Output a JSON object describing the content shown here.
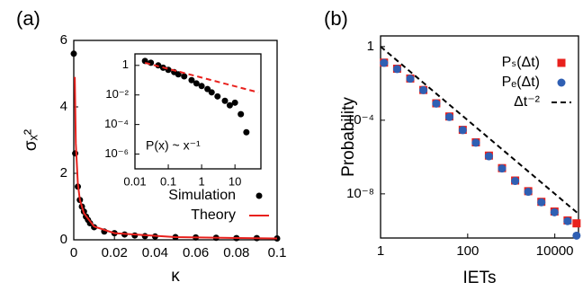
{
  "chart_data": [
    {
      "type": "scatter",
      "panel_label": "(a)",
      "xlabel": "κ",
      "ylabel": "σₓ²",
      "xlim": [
        0,
        0.1
      ],
      "xticks": [
        0,
        0.02,
        0.04,
        0.06,
        0.08,
        0.1
      ],
      "ylim": [
        0,
        6
      ],
      "yticks": [
        0,
        2,
        4,
        6
      ],
      "legend": "lower right",
      "series": [
        {
          "name": "Simulation",
          "color": "#000000",
          "marker": "circle",
          "x": [
            0,
            0.0007,
            0.002,
            0.003,
            0.004,
            0.005,
            0.006,
            0.007,
            0.008,
            0.01,
            0.015,
            0.02,
            0.025,
            0.03,
            0.035,
            0.04,
            0.05,
            0.06,
            0.07,
            0.08,
            0.09,
            0.1
          ],
          "values": [
            5.6,
            2.6,
            1.6,
            1.2,
            1.0,
            0.85,
            0.7,
            0.6,
            0.5,
            0.38,
            0.25,
            0.2,
            0.16,
            0.13,
            0.11,
            0.1,
            0.08,
            0.07,
            0.06,
            0.05,
            0.05,
            0.04
          ]
        },
        {
          "name": "Theory",
          "color": "#e8211d",
          "marker": "line",
          "x": [
            0.0005,
            0.001,
            0.002,
            0.003,
            0.005,
            0.01,
            0.02,
            0.05,
            0.1
          ],
          "values": [
            4.9,
            2.9,
            1.7,
            1.2,
            0.8,
            0.4,
            0.2,
            0.08,
            0.04
          ]
        }
      ]
    },
    {
      "type": "scatter",
      "log": true,
      "annotation": "P(x) ~ x⁻¹",
      "xlim": [
        0.01,
        60
      ],
      "xticks": [
        0.01,
        0.1,
        1,
        10
      ],
      "ylim": [
        1e-07,
        6
      ],
      "yticks": [
        1,
        {
          "value": 0.01,
          "label": "10⁻²"
        },
        {
          "value": 0.0001,
          "label": "10⁻⁴"
        },
        {
          "value": 1e-06,
          "label": "10⁻⁶"
        }
      ],
      "series": [
        {
          "color": "#000000",
          "marker": "circle",
          "x": [
            0.02,
            0.03,
            0.05,
            0.07,
            0.1,
            0.15,
            0.2,
            0.3,
            0.5,
            0.7,
            1,
            1.5,
            2,
            3,
            5,
            7,
            10,
            15,
            22
          ],
          "values": [
            2,
            1.5,
            1,
            0.7,
            0.5,
            0.35,
            0.25,
            0.18,
            0.1,
            0.06,
            0.04,
            0.025,
            0.015,
            0.008,
            0.004,
            0.002,
            0.003,
            0.0005,
            3e-05
          ]
        },
        {
          "color": "#e8211d",
          "marker": "dashed",
          "x": [
            0.02,
            50
          ],
          "values": [
            1.5,
            0.015
          ]
        }
      ]
    },
    {
      "type": "scatter",
      "log": true,
      "panel_label": "(b)",
      "xlabel": "IETs",
      "ylabel": "Probability",
      "xlim": [
        1,
        35000
      ],
      "xticks": [
        1,
        100,
        10000
      ],
      "ylim": [
        4e-11,
        3.8
      ],
      "yticks": [
        1,
        {
          "value": 0.0001,
          "label": "10⁻⁴"
        },
        {
          "value": 1e-08,
          "label": "10⁻⁸"
        }
      ],
      "legend": "upper right",
      "series": [
        {
          "name": "Pₛ(Δt)",
          "color": "#e8211d",
          "marker": "square",
          "x": [
            1.2,
            2.4,
            4.8,
            9.6,
            19,
            38,
            77,
            154,
            307,
            614,
            1229,
            2458,
            4915,
            9830,
            19660,
            31600
          ],
          "values": [
            0.135,
            0.063,
            0.0185,
            0.0044,
            0.00083,
            0.00016,
            3e-05,
            6.3e-06,
            1.2e-06,
            2.5e-07,
            5.3e-08,
            1.4e-08,
            3.7e-09,
            1.1e-09,
            3.6e-10,
            2.5e-10
          ]
        },
        {
          "name": "Pₑ(Δt)",
          "color": "#2f5fb3",
          "marker": "circle",
          "x": [
            1.2,
            2.4,
            4.8,
            9.6,
            19,
            38,
            77,
            154,
            307,
            614,
            1229,
            2458,
            4915,
            9830,
            19660,
            31600
          ],
          "values": [
            0.13,
            0.06,
            0.018,
            0.0043,
            0.0008,
            0.00015,
            2.9e-05,
            6e-06,
            1.1e-06,
            2.4e-07,
            5e-08,
            1.3e-08,
            3.5e-09,
            1e-09,
            3.3e-10,
            5.4e-11
          ]
        },
        {
          "name": "Δt⁻²",
          "color": "#000000",
          "marker": "dashed",
          "x": [
            1,
            35000
          ],
          "values": [
            1,
            8.2e-10
          ]
        }
      ]
    }
  ]
}
